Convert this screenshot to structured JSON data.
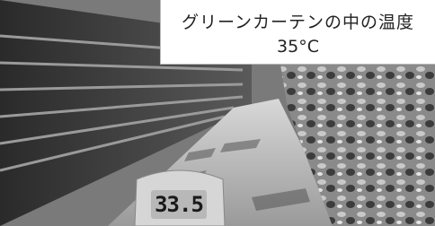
{
  "caption": {
    "title": "グリーンカーテンの中の温度",
    "temperature": "35°C"
  },
  "device": {
    "reading": "33.5"
  }
}
